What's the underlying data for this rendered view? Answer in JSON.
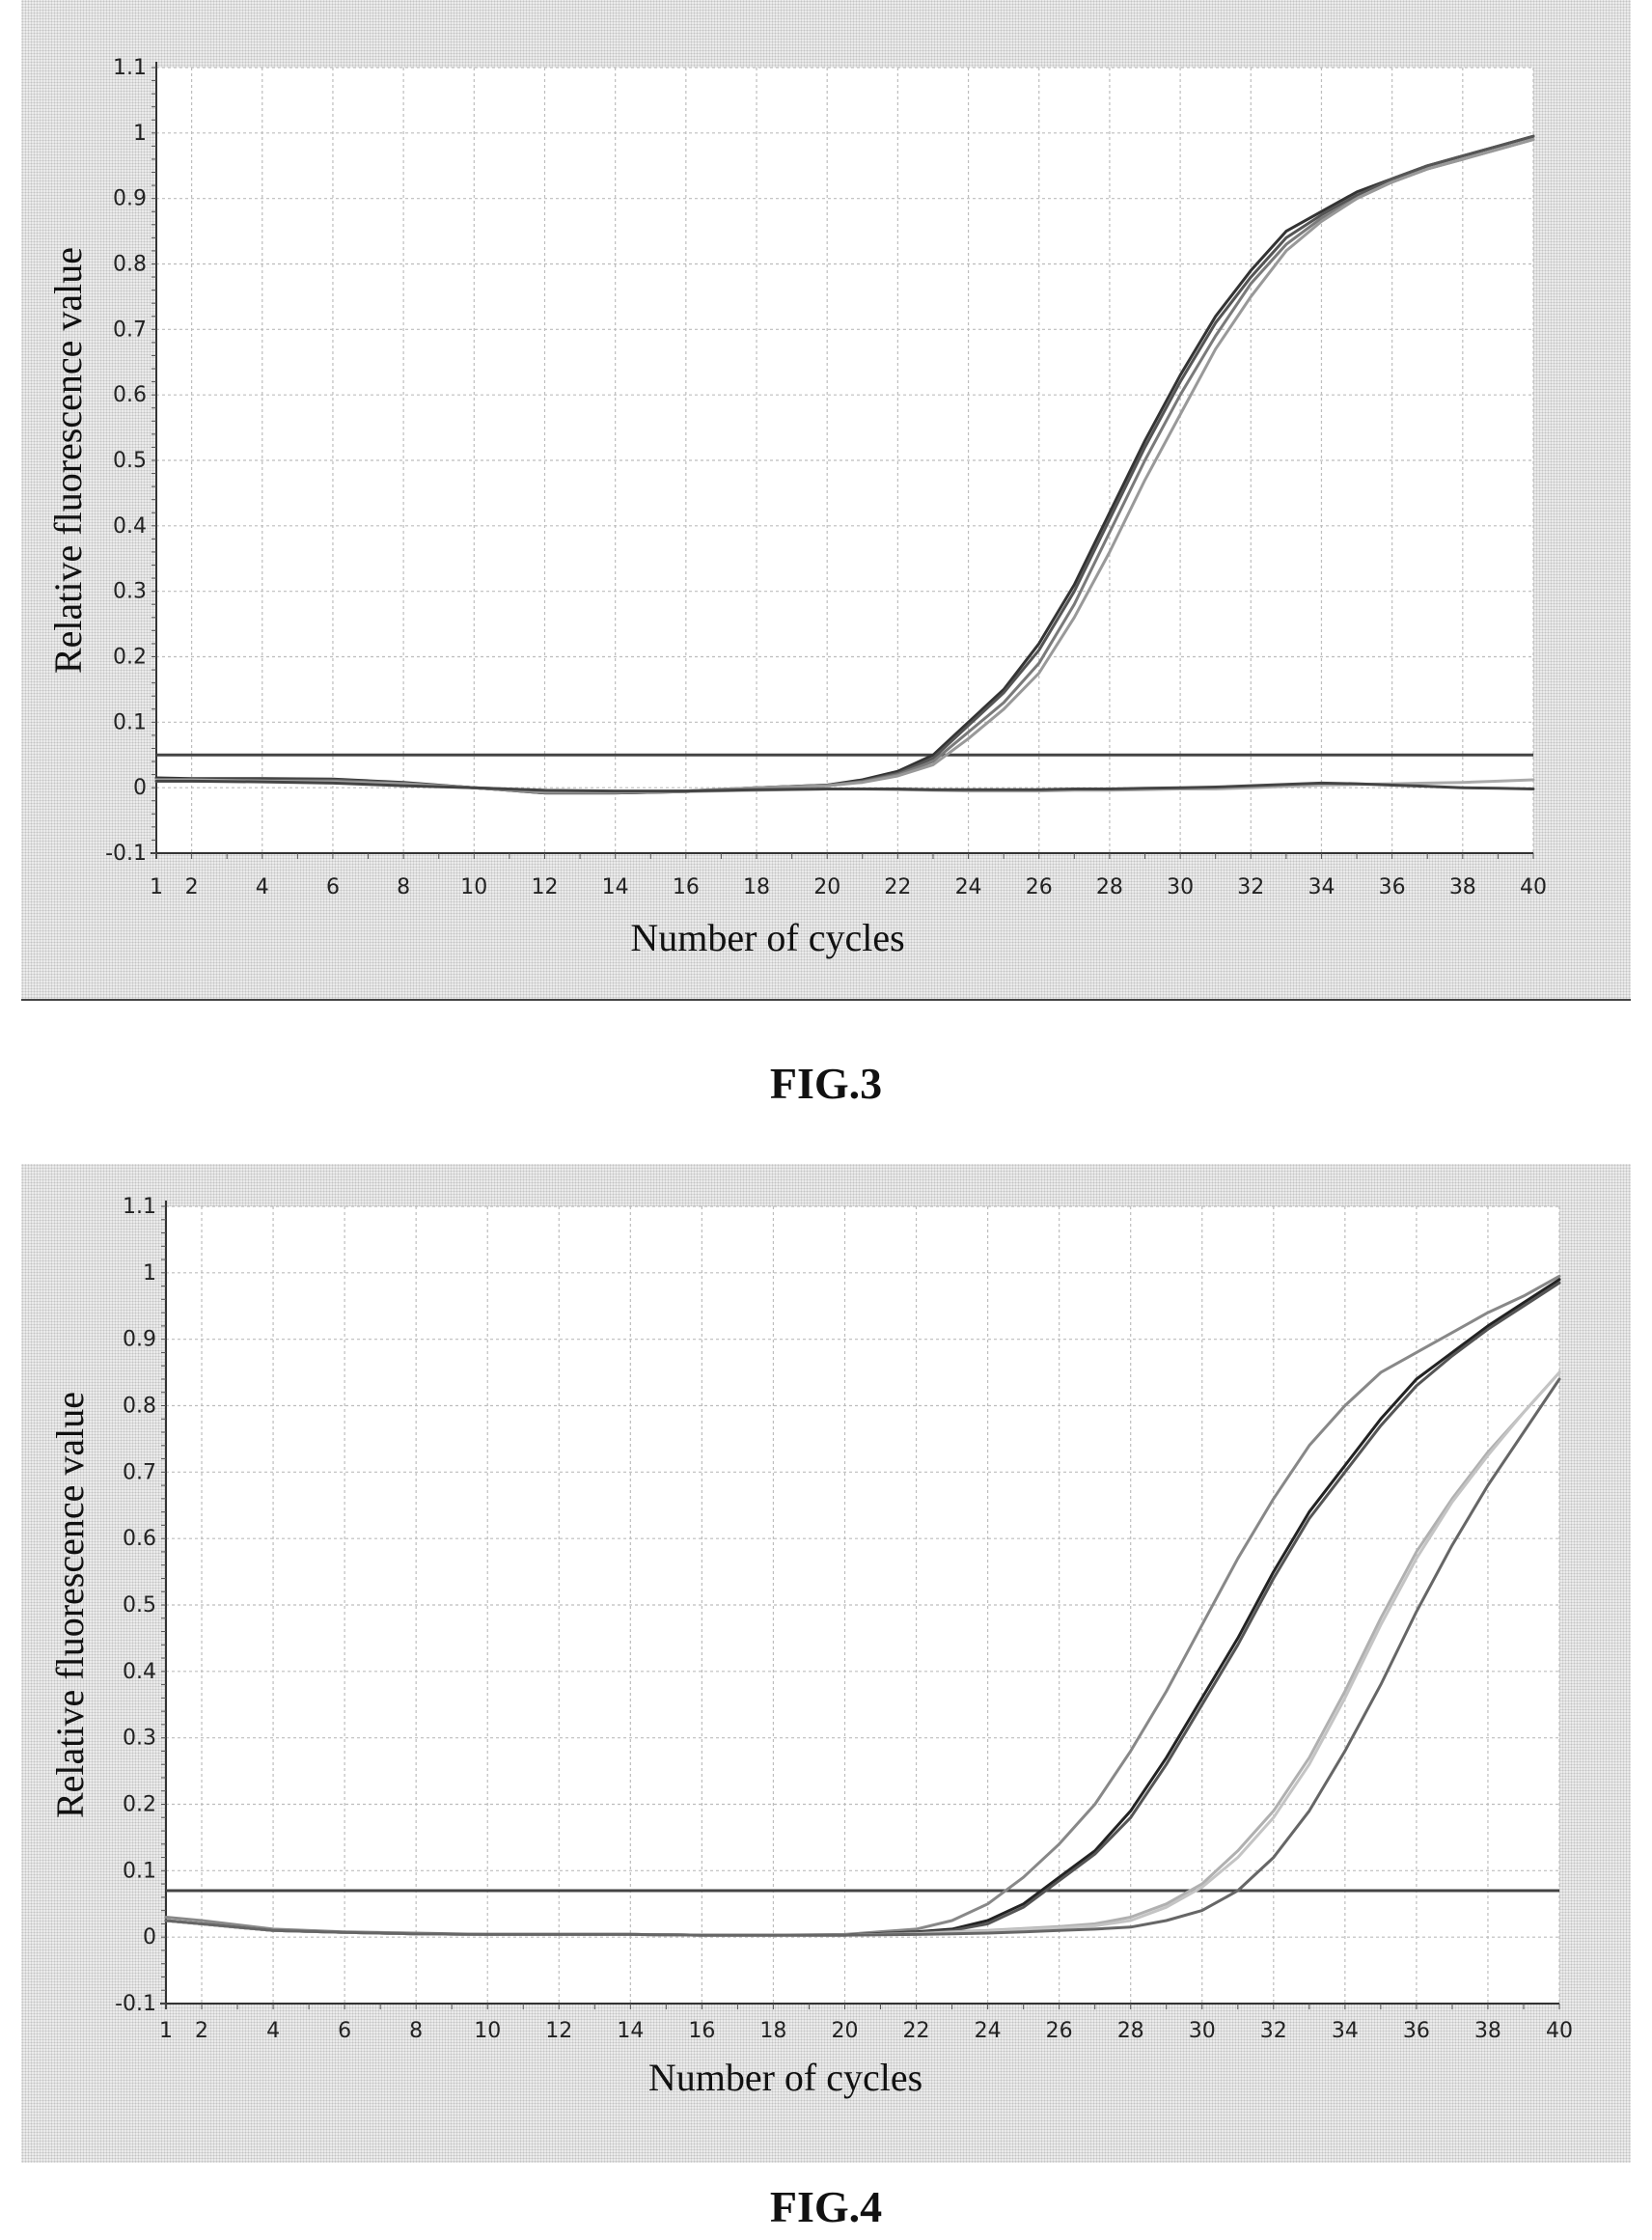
{
  "chart_data": [
    {
      "type": "line",
      "figure_label": "FIG.3",
      "xlabel": "Number of cycles",
      "ylabel": "Relative fluorescence value",
      "xlim": [
        1,
        40
      ],
      "ylim": [
        -0.1,
        1.1
      ],
      "x_ticks": [
        1,
        2,
        4,
        6,
        8,
        10,
        12,
        14,
        16,
        18,
        20,
        22,
        24,
        26,
        28,
        30,
        32,
        34,
        36,
        38,
        40
      ],
      "y_ticks": [
        -0.1,
        0,
        0.1,
        0.2,
        0.3,
        0.4,
        0.5,
        0.6,
        0.7,
        0.8,
        0.9,
        1,
        1.1
      ],
      "y_tick_labels": [
        "-0.1",
        "0",
        "0.1",
        "0.2",
        "0.3",
        "0.4",
        "0.5",
        "0.6",
        "0.7",
        "0.8",
        "0.9",
        "1",
        "1.1"
      ],
      "grid": true,
      "threshold": 0.05,
      "x": [
        1,
        2,
        4,
        6,
        8,
        10,
        12,
        14,
        16,
        18,
        20,
        21,
        22,
        23,
        24,
        25,
        26,
        27,
        28,
        29,
        30,
        31,
        32,
        33,
        34,
        35,
        36,
        37,
        38,
        39,
        40
      ],
      "series": [
        {
          "values": [
            0.015,
            0.014,
            0.014,
            0.013,
            0.008,
            0.0,
            -0.008,
            -0.008,
            -0.006,
            0.0,
            0.004,
            0.012,
            0.025,
            0.05,
            0.1,
            0.15,
            0.22,
            0.31,
            0.42,
            0.53,
            0.63,
            0.72,
            0.79,
            0.85,
            0.88,
            0.91,
            0.93,
            0.95,
            0.965,
            0.98,
            0.995
          ],
          "color": "#333333"
        },
        {
          "values": [
            0.012,
            0.012,
            0.012,
            0.012,
            0.007,
            0.0,
            -0.008,
            -0.008,
            -0.006,
            0.0,
            0.004,
            0.01,
            0.022,
            0.045,
            0.095,
            0.145,
            0.21,
            0.3,
            0.41,
            0.52,
            0.62,
            0.71,
            0.78,
            0.84,
            0.875,
            0.905,
            0.93,
            0.95,
            0.965,
            0.98,
            0.995
          ],
          "color": "#555555"
        },
        {
          "values": [
            0.01,
            0.01,
            0.01,
            0.01,
            0.006,
            0.0,
            -0.007,
            -0.007,
            -0.005,
            0.0,
            0.003,
            0.009,
            0.02,
            0.04,
            0.085,
            0.13,
            0.19,
            0.28,
            0.39,
            0.5,
            0.6,
            0.69,
            0.77,
            0.83,
            0.87,
            0.9,
            0.925,
            0.945,
            0.96,
            0.975,
            0.99
          ],
          "color": "#7a7a7a"
        },
        {
          "values": [
            0.01,
            0.01,
            0.01,
            0.009,
            0.006,
            0.0,
            -0.007,
            -0.007,
            -0.005,
            0.0,
            0.003,
            0.008,
            0.018,
            0.035,
            0.075,
            0.12,
            0.175,
            0.26,
            0.36,
            0.47,
            0.57,
            0.67,
            0.75,
            0.82,
            0.865,
            0.9,
            0.925,
            0.945,
            0.96,
            0.975,
            0.99
          ],
          "color": "#999999"
        },
        {
          "values": [
            0.012,
            0.012,
            0.01,
            0.008,
            0.004,
            0.0,
            -0.004,
            -0.006,
            -0.006,
            -0.004,
            -0.002,
            -0.002,
            -0.003,
            -0.004,
            -0.005,
            -0.005,
            -0.005,
            -0.004,
            -0.004,
            -0.003,
            -0.002,
            -0.002,
            0.0,
            0.002,
            0.004,
            0.005,
            0.006,
            0.007,
            0.008,
            0.01,
            0.012
          ],
          "color": "#aaaaaa"
        },
        {
          "values": [
            0.01,
            0.01,
            0.009,
            0.007,
            0.003,
            0.0,
            -0.004,
            -0.005,
            -0.005,
            -0.003,
            -0.002,
            -0.002,
            -0.002,
            -0.003,
            -0.003,
            -0.003,
            -0.003,
            -0.002,
            -0.002,
            -0.001,
            0.0,
            0.001,
            0.003,
            0.005,
            0.007,
            0.006,
            0.004,
            0.002,
            0.0,
            -0.001,
            -0.002
          ],
          "color": "#444444"
        }
      ]
    },
    {
      "type": "line",
      "figure_label": "FIG.4",
      "xlabel": "Number of cycles",
      "ylabel": "Relative fluorescence value",
      "xlim": [
        1,
        40
      ],
      "ylim": [
        -0.1,
        1.1
      ],
      "x_ticks": [
        1,
        2,
        4,
        6,
        8,
        10,
        12,
        14,
        16,
        18,
        20,
        22,
        24,
        26,
        28,
        30,
        32,
        34,
        36,
        38,
        40
      ],
      "y_ticks": [
        -0.1,
        0,
        0.1,
        0.2,
        0.3,
        0.4,
        0.5,
        0.6,
        0.7,
        0.8,
        0.9,
        1,
        1.1
      ],
      "y_tick_labels": [
        "-0.1",
        "0",
        "0.1",
        "0.2",
        "0.3",
        "0.4",
        "0.5",
        "0.6",
        "0.7",
        "0.8",
        "0.9",
        "1",
        "1.1"
      ],
      "grid": true,
      "threshold": 0.07,
      "x": [
        1,
        2,
        4,
        6,
        8,
        10,
        12,
        14,
        16,
        18,
        20,
        22,
        23,
        24,
        25,
        26,
        27,
        28,
        29,
        30,
        31,
        32,
        33,
        34,
        35,
        36,
        37,
        38,
        39,
        40
      ],
      "series": [
        {
          "values": [
            0.03,
            0.025,
            0.012,
            0.008,
            0.006,
            0.004,
            0.004,
            0.004,
            0.003,
            0.003,
            0.004,
            0.012,
            0.025,
            0.05,
            0.09,
            0.14,
            0.2,
            0.28,
            0.37,
            0.47,
            0.57,
            0.66,
            0.74,
            0.8,
            0.85,
            0.88,
            0.91,
            0.94,
            0.965,
            0.995
          ],
          "color": "#888888"
        },
        {
          "values": [
            0.025,
            0.02,
            0.01,
            0.007,
            0.005,
            0.004,
            0.004,
            0.004,
            0.003,
            0.003,
            0.003,
            0.008,
            0.012,
            0.025,
            0.05,
            0.09,
            0.13,
            0.19,
            0.27,
            0.36,
            0.45,
            0.55,
            0.64,
            0.71,
            0.78,
            0.84,
            0.88,
            0.92,
            0.955,
            0.99
          ],
          "color": "#222222"
        },
        {
          "values": [
            0.025,
            0.02,
            0.01,
            0.007,
            0.005,
            0.004,
            0.004,
            0.004,
            0.003,
            0.003,
            0.003,
            0.007,
            0.01,
            0.02,
            0.045,
            0.085,
            0.125,
            0.18,
            0.26,
            0.35,
            0.44,
            0.54,
            0.63,
            0.7,
            0.77,
            0.83,
            0.875,
            0.915,
            0.95,
            0.985
          ],
          "color": "#555555"
        },
        {
          "values": [
            0.025,
            0.02,
            0.01,
            0.007,
            0.005,
            0.004,
            0.004,
            0.004,
            0.003,
            0.003,
            0.003,
            0.005,
            0.008,
            0.01,
            0.013,
            0.016,
            0.02,
            0.03,
            0.05,
            0.08,
            0.13,
            0.19,
            0.27,
            0.37,
            0.48,
            0.58,
            0.66,
            0.73,
            0.79,
            0.85
          ],
          "color": "#b0b0b0"
        },
        {
          "values": [
            0.025,
            0.02,
            0.01,
            0.007,
            0.005,
            0.004,
            0.004,
            0.004,
            0.003,
            0.003,
            0.003,
            0.005,
            0.007,
            0.009,
            0.012,
            0.014,
            0.017,
            0.025,
            0.045,
            0.075,
            0.12,
            0.18,
            0.26,
            0.36,
            0.47,
            0.57,
            0.655,
            0.725,
            0.79,
            0.85
          ],
          "color": "#c4c4c4"
        },
        {
          "values": [
            0.025,
            0.02,
            0.01,
            0.007,
            0.005,
            0.004,
            0.004,
            0.004,
            0.003,
            0.003,
            0.003,
            0.004,
            0.005,
            0.006,
            0.008,
            0.01,
            0.012,
            0.015,
            0.025,
            0.04,
            0.07,
            0.12,
            0.19,
            0.28,
            0.38,
            0.49,
            0.59,
            0.68,
            0.76,
            0.84
          ],
          "color": "#666666"
        }
      ]
    }
  ]
}
